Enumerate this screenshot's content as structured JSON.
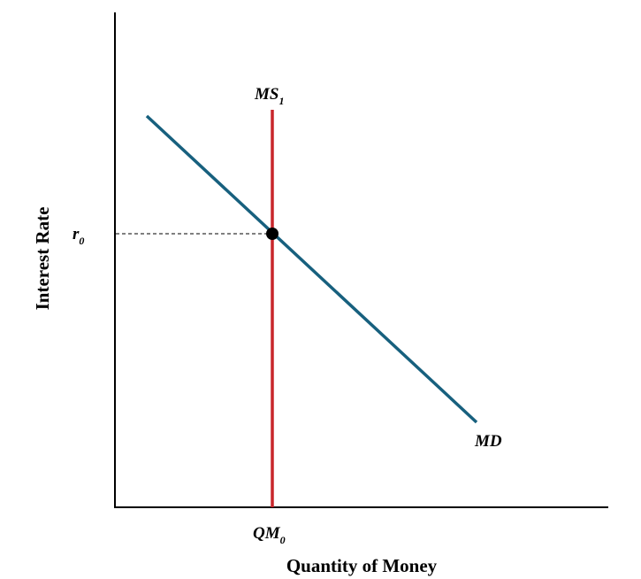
{
  "axes": {
    "x_label": "Quantity of Money",
    "y_label": "Interest Rate"
  },
  "curves": [
    {
      "label": "MS",
      "subscript": "1"
    },
    {
      "label": "MD"
    }
  ],
  "equilibrium": {
    "rate_label": "r",
    "rate_subscript": "0",
    "quantity_label": "QM",
    "quantity_subscript": "0"
  }
}
